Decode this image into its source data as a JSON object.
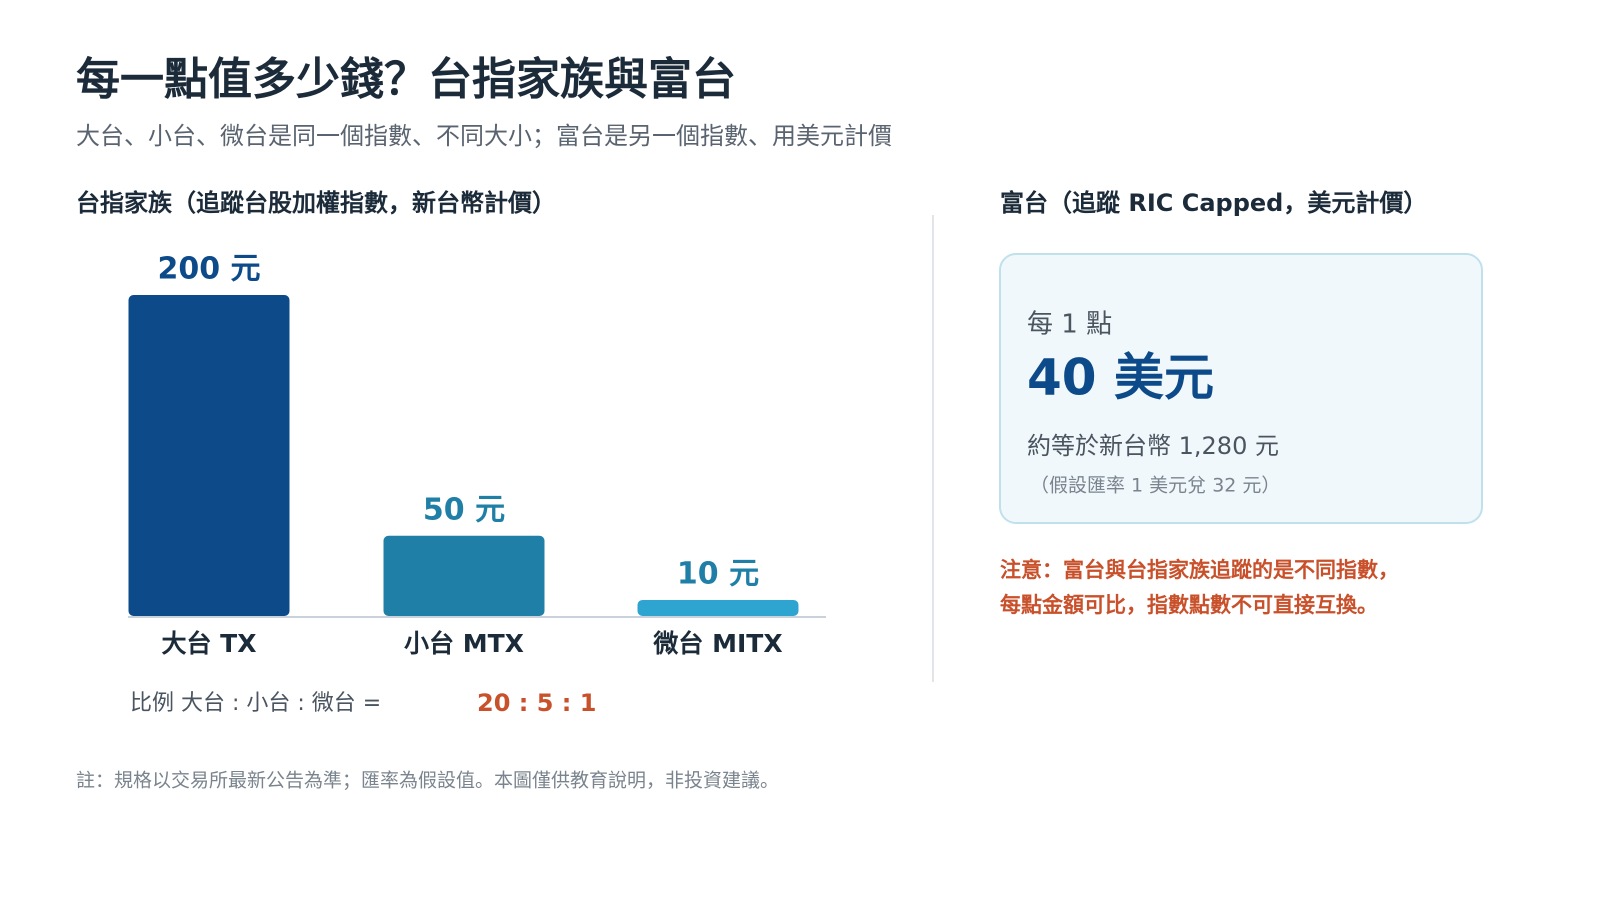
{
  "header": {
    "title": "每一點值多少錢？台指家族與富台",
    "subtitle": "大台、小台、微台是同一個指數、不同大小；富台是另一個指數、用美元計價"
  },
  "chart_data": {
    "type": "bar",
    "title": "台指家族（追蹤台股加權指數，新台幣計價）",
    "categories": [
      "大台 TX",
      "小台 MTX",
      "微台 MITX"
    ],
    "values": [
      200,
      50,
      10
    ],
    "value_labels": [
      "200 元",
      "50 元",
      "10 元"
    ],
    "colors": [
      "#0d4a8a",
      "#1f7fa6",
      "#2ea4d0"
    ]
  },
  "ratio": {
    "label": "比例 大台 : 小台 : 微台 =",
    "value": "20 : 5 : 1"
  },
  "card": {
    "title": "富台（追蹤 RIC Capped，美元計價）",
    "per_point": "每 1 點",
    "amount": "40 美元",
    "twd": "約等於新台幣 1,280 元",
    "assumption": "（假設匯率 1 美元兌 32 元）"
  },
  "note": [
    "注意：富台與台指家族追蹤的是不同指數，",
    "每點金額可比，指數點數不可直接互換。"
  ],
  "footnote": "註：規格以交易所最新公告為準；匯率為假設值。本圖僅供教育說明，非投資建議。"
}
